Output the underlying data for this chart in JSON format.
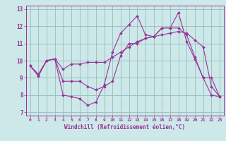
{
  "xlabel": "Windchill (Refroidissement éolien,°C)",
  "xlim": [
    -0.5,
    23.5
  ],
  "ylim": [
    6.8,
    13.2
  ],
  "yticks": [
    7,
    8,
    9,
    10,
    11,
    12,
    13
  ],
  "xticks": [
    0,
    1,
    2,
    3,
    4,
    5,
    6,
    7,
    8,
    9,
    10,
    11,
    12,
    13,
    14,
    15,
    16,
    17,
    18,
    19,
    20,
    21,
    22,
    23
  ],
  "background_color": "#cce8e8",
  "line_color": "#993399",
  "grid_color": "#99bbbb",
  "series1_x": [
    0,
    1,
    2,
    3,
    4,
    5,
    6,
    7,
    8,
    9,
    10,
    11,
    12,
    13,
    14,
    15,
    16,
    17,
    18,
    19,
    20,
    21,
    22,
    23
  ],
  "series1_y": [
    9.7,
    9.1,
    10.0,
    10.1,
    8.0,
    7.9,
    7.8,
    7.4,
    7.6,
    8.6,
    10.5,
    11.6,
    12.1,
    12.6,
    11.5,
    11.4,
    11.9,
    11.9,
    12.8,
    11.1,
    10.1,
    9.0,
    9.0,
    7.9
  ],
  "series2_x": [
    0,
    1,
    2,
    3,
    4,
    5,
    6,
    7,
    8,
    9,
    10,
    11,
    12,
    13,
    14,
    15,
    16,
    17,
    18,
    19,
    20,
    21,
    22,
    23
  ],
  "series2_y": [
    9.7,
    9.2,
    10.0,
    10.1,
    8.8,
    8.8,
    8.8,
    8.5,
    8.3,
    8.5,
    8.8,
    10.3,
    11.0,
    11.0,
    11.3,
    11.4,
    11.9,
    11.9,
    11.9,
    11.5,
    10.2,
    9.0,
    8.0,
    7.9
  ],
  "series3_x": [
    0,
    1,
    2,
    3,
    4,
    5,
    6,
    7,
    8,
    9,
    10,
    11,
    12,
    13,
    14,
    15,
    16,
    17,
    18,
    19,
    20,
    21,
    22,
    23
  ],
  "series3_y": [
    9.7,
    9.2,
    10.0,
    10.1,
    9.5,
    9.8,
    9.8,
    9.9,
    9.9,
    9.9,
    10.2,
    10.5,
    10.8,
    11.1,
    11.3,
    11.4,
    11.5,
    11.6,
    11.7,
    11.6,
    11.2,
    10.8,
    8.5,
    7.9
  ]
}
